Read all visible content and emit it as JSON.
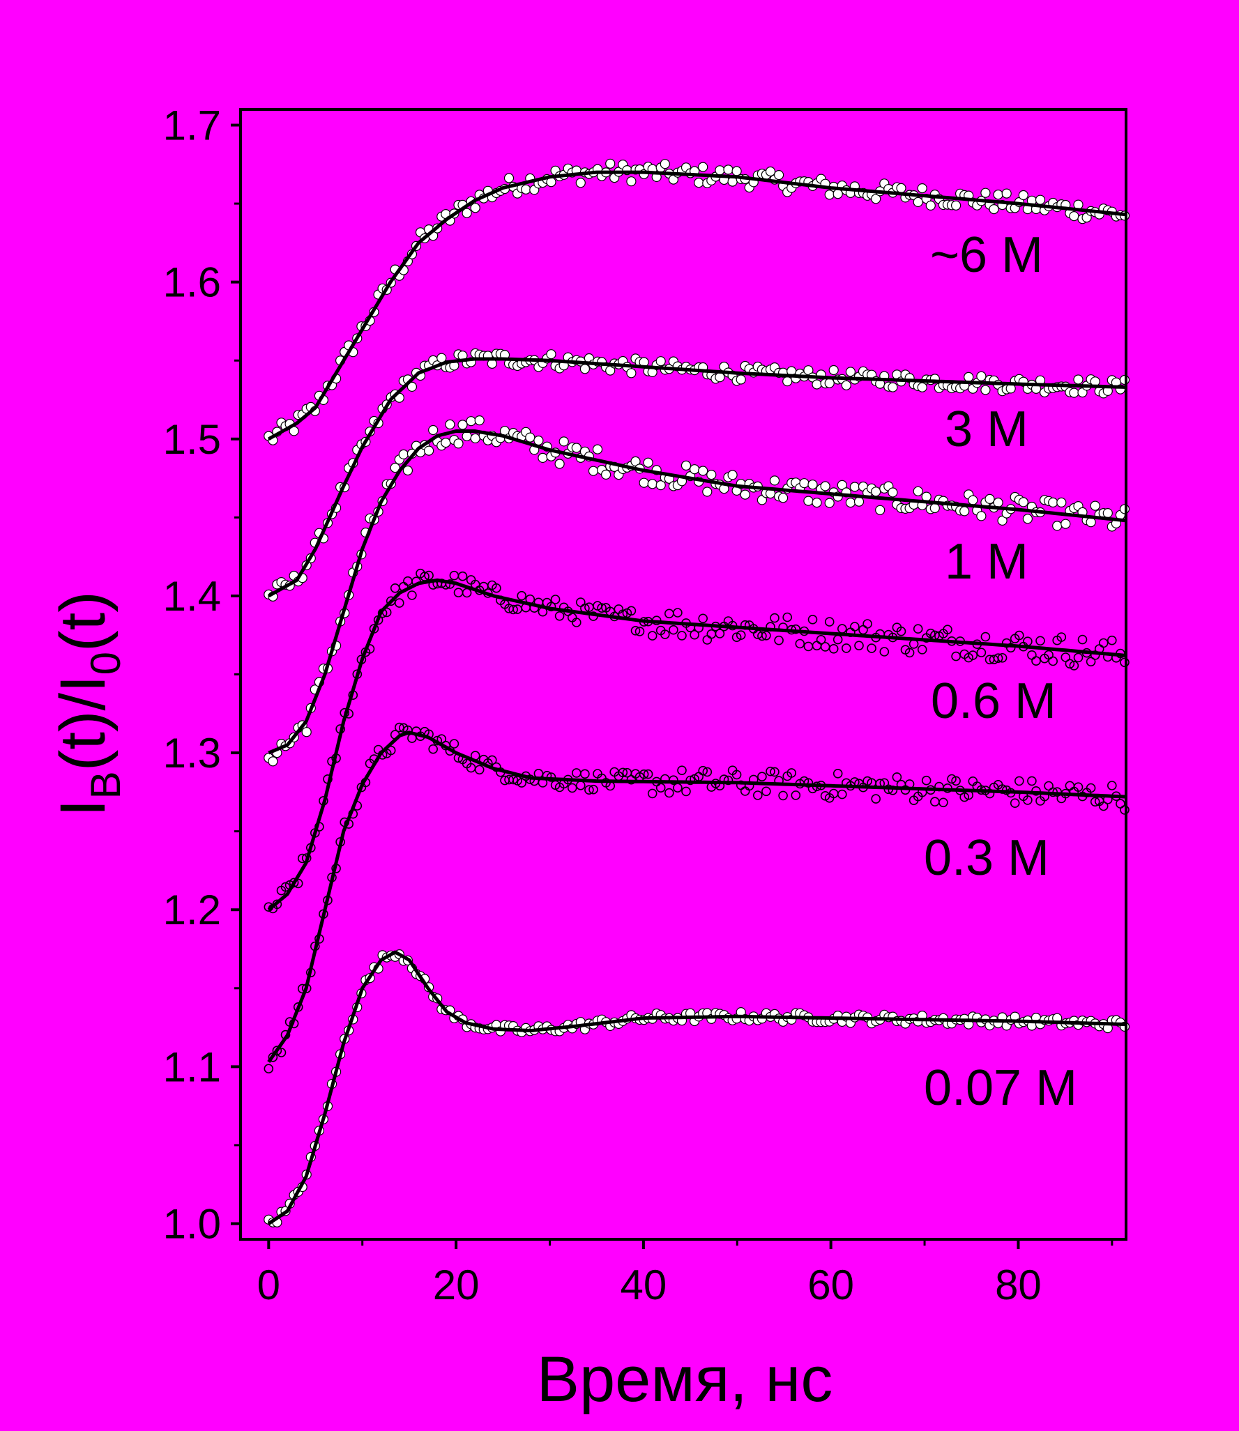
{
  "colors": {
    "background": "#FF00FF",
    "axis": "#000000",
    "fit_line": "#000000",
    "marker_fill_light": "#FFFFFF",
    "marker_fill_open": "none",
    "marker_stroke": "#000000"
  },
  "chart_data": {
    "type": "scatter",
    "title": "",
    "xlabel": "Время, нс",
    "ylabel": {
      "main": "I",
      "sub1": "B",
      "mid": "(t)/I",
      "sub2": "0",
      "end": "(t)"
    },
    "xlim": [
      -3,
      91.5
    ],
    "ylim": [
      0.99,
      1.71
    ],
    "xticks": [
      0,
      20,
      40,
      60,
      80
    ],
    "xtick_labels": [
      "0",
      "20",
      "40",
      "60",
      "80"
    ],
    "yticks": [
      1.0,
      1.1,
      1.2,
      1.3,
      1.4,
      1.5,
      1.6,
      1.7
    ],
    "ytick_labels": [
      "1.0",
      "1.1",
      "1.2",
      "1.3",
      "1.4",
      "1.5",
      "1.6",
      "1.7"
    ],
    "grid": false,
    "legend": "none",
    "markers": "circles with fitted curves",
    "series": [
      {
        "name": "~6 M",
        "marker": "filled-white",
        "noise": 0.006,
        "fit": [
          [
            0,
            1.5
          ],
          [
            3,
            1.51
          ],
          [
            5,
            1.52
          ],
          [
            8,
            1.55
          ],
          [
            10,
            1.57
          ],
          [
            13,
            1.6
          ],
          [
            16,
            1.625
          ],
          [
            19,
            1.64
          ],
          [
            22,
            1.652
          ],
          [
            25,
            1.66
          ],
          [
            30,
            1.667
          ],
          [
            35,
            1.67
          ],
          [
            40,
            1.67
          ],
          [
            50,
            1.667
          ],
          [
            60,
            1.66
          ],
          [
            70,
            1.655
          ],
          [
            80,
            1.65
          ],
          [
            91.5,
            1.643
          ]
        ]
      },
      {
        "name": "3 M",
        "marker": "filled-white",
        "noise": 0.005,
        "fit": [
          [
            0,
            1.4
          ],
          [
            3,
            1.41
          ],
          [
            5,
            1.43
          ],
          [
            8,
            1.47
          ],
          [
            10,
            1.495
          ],
          [
            13,
            1.525
          ],
          [
            16,
            1.542
          ],
          [
            19,
            1.549
          ],
          [
            22,
            1.551
          ],
          [
            25,
            1.551
          ],
          [
            30,
            1.55
          ],
          [
            40,
            1.546
          ],
          [
            50,
            1.542
          ],
          [
            60,
            1.539
          ],
          [
            70,
            1.537
          ],
          [
            80,
            1.535
          ],
          [
            91.5,
            1.533
          ]
        ]
      },
      {
        "name": "1 M",
        "marker": "filled-white",
        "noise": 0.008,
        "fit": [
          [
            0,
            1.3
          ],
          [
            2,
            1.305
          ],
          [
            4,
            1.32
          ],
          [
            6,
            1.35
          ],
          [
            8,
            1.39
          ],
          [
            10,
            1.43
          ],
          [
            12,
            1.46
          ],
          [
            14,
            1.48
          ],
          [
            16,
            1.494
          ],
          [
            18,
            1.502
          ],
          [
            20,
            1.505
          ],
          [
            22,
            1.505
          ],
          [
            25,
            1.502
          ],
          [
            30,
            1.493
          ],
          [
            40,
            1.48
          ],
          [
            50,
            1.47
          ],
          [
            60,
            1.465
          ],
          [
            70,
            1.46
          ],
          [
            80,
            1.455
          ],
          [
            91.5,
            1.448
          ]
        ]
      },
      {
        "name": "0.6 M",
        "marker": "open",
        "noise": 0.007,
        "fit": [
          [
            0,
            1.2
          ],
          [
            2,
            1.21
          ],
          [
            4,
            1.23
          ],
          [
            6,
            1.27
          ],
          [
            8,
            1.32
          ],
          [
            10,
            1.36
          ],
          [
            12,
            1.39
          ],
          [
            14,
            1.402
          ],
          [
            16,
            1.408
          ],
          [
            18,
            1.41
          ],
          [
            20,
            1.408
          ],
          [
            24,
            1.4
          ],
          [
            30,
            1.392
          ],
          [
            40,
            1.384
          ],
          [
            50,
            1.38
          ],
          [
            60,
            1.376
          ],
          [
            70,
            1.372
          ],
          [
            80,
            1.368
          ],
          [
            91.5,
            1.362
          ]
        ]
      },
      {
        "name": "0.3 M",
        "marker": "open",
        "noise": 0.006,
        "fit": [
          [
            0,
            1.103
          ],
          [
            2,
            1.12
          ],
          [
            4,
            1.15
          ],
          [
            6,
            1.2
          ],
          [
            8,
            1.25
          ],
          [
            10,
            1.28
          ],
          [
            12,
            1.3
          ],
          [
            14,
            1.311
          ],
          [
            15,
            1.313
          ],
          [
            17,
            1.31
          ],
          [
            20,
            1.3
          ],
          [
            24,
            1.29
          ],
          [
            28,
            1.284
          ],
          [
            35,
            1.282
          ],
          [
            50,
            1.281
          ],
          [
            60,
            1.279
          ],
          [
            70,
            1.277
          ],
          [
            80,
            1.275
          ],
          [
            91.5,
            1.272
          ]
        ]
      },
      {
        "name": "0.07 M",
        "marker": "filled-white",
        "noise": 0.003,
        "fit": [
          [
            0,
            1.0
          ],
          [
            2,
            1.008
          ],
          [
            4,
            1.03
          ],
          [
            6,
            1.07
          ],
          [
            8,
            1.115
          ],
          [
            10,
            1.15
          ],
          [
            12,
            1.168
          ],
          [
            13.5,
            1.173
          ],
          [
            15,
            1.168
          ],
          [
            17,
            1.15
          ],
          [
            19,
            1.135
          ],
          [
            21,
            1.128
          ],
          [
            24,
            1.124
          ],
          [
            28,
            1.123
          ],
          [
            33,
            1.126
          ],
          [
            40,
            1.131
          ],
          [
            50,
            1.132
          ],
          [
            60,
            1.131
          ],
          [
            70,
            1.13
          ],
          [
            80,
            1.129
          ],
          [
            91.5,
            1.127
          ]
        ]
      }
    ]
  }
}
